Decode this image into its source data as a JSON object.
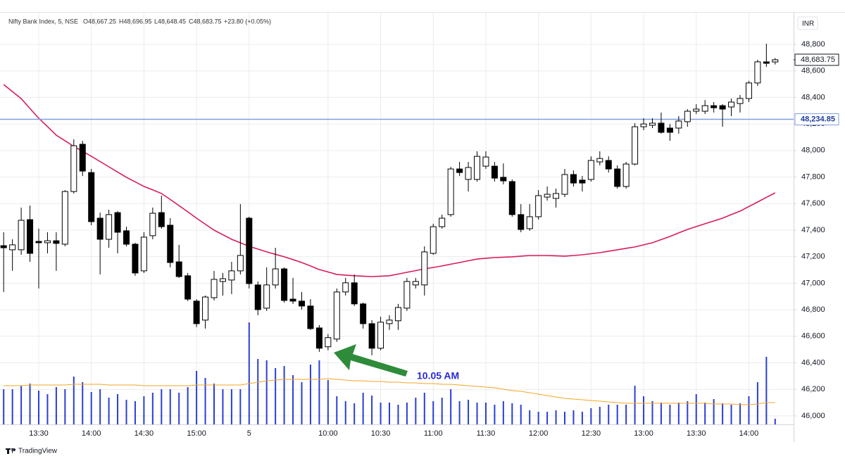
{
  "chart_data": {
    "type": "candlestick",
    "title": "Nifty Bank Index, 5, NSE",
    "ohlc_header": [
      "O48,667.25",
      "H48,696.95",
      "L48,648.45",
      "C48,683.75",
      "+23.80 (+0.05%)"
    ],
    "currency": "INR",
    "brand": "TradingView",
    "up_color": "#ffffff",
    "down_color": "#000000",
    "border_color": "#000000",
    "grid": true,
    "categories": [
      null,
      null,
      null,
      null,
      "13:30",
      null,
      null,
      null,
      null,
      null,
      "14:00",
      null,
      null,
      null,
      null,
      null,
      "14:30",
      null,
      null,
      null,
      null,
      null,
      "15:00",
      null,
      null,
      null,
      null,
      null,
      "5",
      null,
      null,
      null,
      null,
      null,
      null,
      null,
      null,
      "10:00",
      null,
      null,
      null,
      null,
      null,
      "10:30",
      null,
      null,
      null,
      null,
      null,
      "11:00",
      null,
      null,
      null,
      null,
      null,
      "11:30",
      null,
      null,
      null,
      null,
      null,
      "12:00",
      null,
      null,
      null,
      null,
      null,
      "12:30",
      null,
      null,
      null,
      null,
      null,
      "13:00",
      null,
      null,
      null,
      null,
      null,
      "13:30",
      null,
      null,
      null,
      null,
      null,
      "14:00",
      null,
      null,
      null
    ],
    "open": [
      47283,
      47252,
      47252,
      47479,
      47315,
      47305,
      47320,
      47294,
      47691,
      48047,
      47834,
      47490,
      47331,
      47532,
      47395,
      47294,
      47093,
      47358,
      47532,
      47437,
      47161,
      47056,
      46865,
      46722,
      46891,
      47013,
      47024,
      47093,
      47490,
      46987,
      46812,
      46987,
      47108,
      46880,
      46865,
      46828,
      46663,
      46521,
      46579,
      46934,
      47003,
      46844,
      46695,
      46510,
      46695,
      46717,
      46812,
      46987,
      46987,
      47225,
      47426,
      47517,
      47861,
      47782,
      47782,
      47882,
      47882,
      47798,
      47766,
      47517,
      47411,
      47501,
      47649,
      47639,
      47670,
      47819,
      47777,
      47782,
      47914,
      47925,
      47861,
      47729,
      47898,
      48179,
      48190,
      48206,
      48169,
      48169,
      48217,
      48296,
      48296,
      48338,
      48338,
      48328,
      48354,
      48392,
      48509,
      48668,
      48667.25
    ],
    "high": [
      47384,
      47331,
      47570,
      47585,
      47411,
      47384,
      47384,
      47702,
      48084,
      48073,
      47861,
      47532,
      47554,
      47543,
      47426,
      47305,
      47384,
      47570,
      47660,
      47490,
      47289,
      47077,
      46880,
      46907,
      47093,
      47077,
      47161,
      47596,
      47501,
      47013,
      47119,
      47267,
      47119,
      47040,
      46934,
      46880,
      46685,
      46616,
      46960,
      47040,
      47066,
      46854,
      46722,
      46748,
      46759,
      46844,
      47040,
      47040,
      47278,
      47448,
      47517,
      47877,
      47914,
      47914,
      47994,
      47994,
      47914,
      47903,
      47782,
      47596,
      47596,
      47702,
      47729,
      47713,
      47861,
      47850,
      47808,
      47956,
      47994,
      47956,
      47888,
      47914,
      48206,
      48243,
      48243,
      48286,
      48200,
      48259,
      48312,
      48349,
      48380,
      48365,
      48349,
      48392,
      48418,
      48525,
      48684,
      48805,
      48696.95
    ],
    "low": [
      46934,
      47093,
      47214,
      47161,
      46960,
      47225,
      47093,
      47278,
      47676,
      47808,
      47437,
      47066,
      47267,
      47225,
      47278,
      47056,
      47077,
      47331,
      47411,
      47119,
      47040,
      46865,
      46669,
      46658,
      46870,
      46907,
      46918,
      47066,
      46960,
      46759,
      46791,
      46960,
      46854,
      46844,
      46801,
      46648,
      46483,
      46494,
      46558,
      46907,
      46828,
      46658,
      46457,
      46494,
      46648,
      46648,
      46791,
      46960,
      46907,
      47214,
      47411,
      47501,
      47808,
      47691,
      47766,
      47861,
      47766,
      47745,
      47501,
      47384,
      47395,
      47479,
      47623,
      47570,
      47649,
      47729,
      47691,
      47766,
      47888,
      47834,
      47713,
      47713,
      47888,
      48153,
      48169,
      48127,
      48073,
      48127,
      48179,
      48275,
      48275,
      48286,
      48179,
      48259,
      48286,
      48365,
      48487,
      48630,
      48648.45
    ],
    "close": [
      47267,
      47289,
      47474,
      47225,
      47305,
      47320,
      47300,
      47691,
      48036,
      47845,
      47464,
      47331,
      47517,
      47384,
      47294,
      47077,
      47347,
      47527,
      47426,
      47156,
      47050,
      46880,
      46695,
      46896,
      47029,
      47034,
      47093,
      47209,
      46997,
      46801,
      46987,
      47108,
      46870,
      46865,
      46828,
      46658,
      46510,
      46590,
      46934,
      47003,
      46844,
      46695,
      46510,
      46706,
      46722,
      46817,
      47013,
      47013,
      47236,
      47426,
      47490,
      47861,
      47834,
      47872,
      47956,
      47951,
      47792,
      47771,
      47517,
      47405,
      47501,
      47660,
      47670,
      47676,
      47819,
      47755,
      47755,
      47925,
      47940,
      47861,
      47729,
      47898,
      48179,
      48200,
      48206,
      48137,
      48137,
      48222,
      48296,
      48312,
      48338,
      48322,
      48312,
      48365,
      48392,
      48509,
      48668,
      48657,
      48683.75
    ],
    "moving_averages": [
      {
        "color": "#d81b60",
        "values": [
          48497,
          48444,
          48391,
          48317,
          48243,
          48180,
          48116,
          48074,
          48031,
          47994,
          47956,
          47917,
          47877,
          47838,
          47798,
          47764,
          47729,
          47703,
          47676,
          47631,
          47585,
          47538,
          47490,
          47445,
          47400,
          47366,
          47331,
          47305,
          47278,
          47257,
          47236,
          47218,
          47199,
          47178,
          47156,
          47130,
          47103,
          47085,
          47066,
          47061,
          47056,
          47053,
          47050,
          47053,
          47056,
          47069,
          47082,
          47095,
          47108,
          47119,
          47130,
          47143,
          47156,
          47169,
          47182,
          47188,
          47193,
          47196,
          47199,
          47204,
          47209,
          47209,
          47209,
          47207,
          47204,
          47209,
          47214,
          47222,
          47230,
          47241,
          47252,
          47263,
          47273,
          47289,
          47305,
          47329,
          47352,
          47379,
          47405,
          47427,
          47448,
          47469,
          47490,
          47517,
          47543,
          47578,
          47612,
          47647,
          47681
        ]
      }
    ],
    "volume": {
      "color": "#2a3fd6",
      "ma_color": "#f5a623",
      "values": [
        50,
        50,
        55,
        58,
        48,
        43,
        53,
        50,
        68,
        60,
        46,
        50,
        38,
        43,
        35,
        33,
        40,
        45,
        50,
        50,
        45,
        53,
        76,
        66,
        58,
        50,
        50,
        50,
        145,
        93,
        91,
        80,
        83,
        70,
        60,
        85,
        91,
        63,
        40,
        33,
        30,
        45,
        41,
        31,
        31,
        28,
        31,
        38,
        45,
        33,
        38,
        50,
        33,
        35,
        31,
        31,
        28,
        33,
        30,
        28,
        20,
        18,
        18,
        20,
        18,
        20,
        18,
        23,
        25,
        28,
        28,
        28,
        55,
        40,
        33,
        31,
        28,
        31,
        33,
        43,
        31,
        36,
        30,
        28,
        30,
        40,
        60,
        96,
        8
      ],
      "ma_values": [
        55,
        55,
        55,
        56,
        56,
        56,
        56,
        56,
        57,
        57,
        57,
        57,
        56,
        56,
        56,
        56,
        55,
        55,
        55,
        55,
        55,
        55,
        56,
        56,
        56,
        56,
        56,
        56,
        58,
        60,
        62,
        63,
        64,
        64,
        64,
        64,
        64,
        65,
        64,
        63,
        62,
        62,
        61,
        61,
        60,
        60,
        59,
        59,
        58,
        58,
        57,
        57,
        56,
        55,
        54,
        53,
        52,
        50,
        48,
        47,
        45,
        43,
        41,
        39,
        37,
        36,
        35,
        34,
        33,
        32,
        31,
        30,
        30,
        30,
        30,
        30,
        30,
        30,
        30,
        30,
        30,
        29,
        29,
        29,
        28,
        28,
        29,
        31,
        31
      ]
    },
    "ylim": [
      45936,
      49044
    ],
    "yticks": [
      {
        "value": 46000,
        "label": "46,000"
      },
      {
        "value": 46200,
        "label": "46,200"
      },
      {
        "value": 46400,
        "label": "46,400"
      },
      {
        "value": 46600,
        "label": "46,600"
      },
      {
        "value": 46800,
        "label": "46,800"
      },
      {
        "value": 47000,
        "label": "47,000"
      },
      {
        "value": 47200,
        "label": "47,200"
      },
      {
        "value": 47400,
        "label": "47,400"
      },
      {
        "value": 47600,
        "label": "47,600"
      },
      {
        "value": 47800,
        "label": "47,800"
      },
      {
        "value": 48000,
        "label": "48,000"
      },
      {
        "value": 48200,
        "label": "48,200"
      },
      {
        "value": 48400,
        "label": "48,400"
      },
      {
        "value": 48600,
        "label": "48,600"
      },
      {
        "value": 48800,
        "label": "48,800"
      }
    ],
    "horizontal_line": {
      "value": 48234.85,
      "label": "48,234.85",
      "color": "#7f9ee0"
    },
    "last_price": {
      "value": 48683.75,
      "label": "48,683.75"
    },
    "annotation": {
      "text": "10.05 AM",
      "color": "#2a2ad6",
      "arrow_color": "#2e8b3a"
    }
  }
}
